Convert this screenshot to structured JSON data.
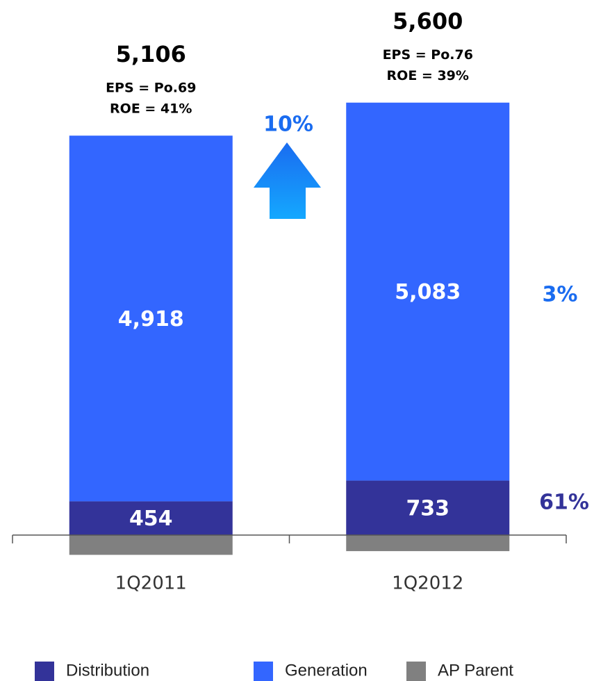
{
  "chart_data": {
    "type": "stacked_bar",
    "categories": [
      "1Q2011",
      "1Q2012"
    ],
    "series": [
      {
        "name": "Distribution",
        "color": "#333399",
        "values": [
          454,
          733
        ]
      },
      {
        "name": "Generation",
        "color": "#3366ff",
        "values": [
          4918,
          5083
        ],
        "value_labels": [
          "4,918",
          "5,083"
        ]
      },
      {
        "name": "AP Parent",
        "color": "#808080",
        "values": [
          -266,
          -216
        ]
      }
    ],
    "totals": {
      "values": [
        5106,
        5600
      ],
      "value_labels": [
        "5,106",
        "5,600"
      ]
    },
    "notes": [
      [
        "EPS = Po.69",
        "ROE = 41%"
      ],
      [
        "EPS = Po.76",
        "ROE = 39%"
      ]
    ],
    "growth": {
      "total": "10%",
      "generation": "3%",
      "distribution": "61%"
    },
    "ylim": [
      -800,
      6000
    ],
    "legend": "bottom"
  }
}
